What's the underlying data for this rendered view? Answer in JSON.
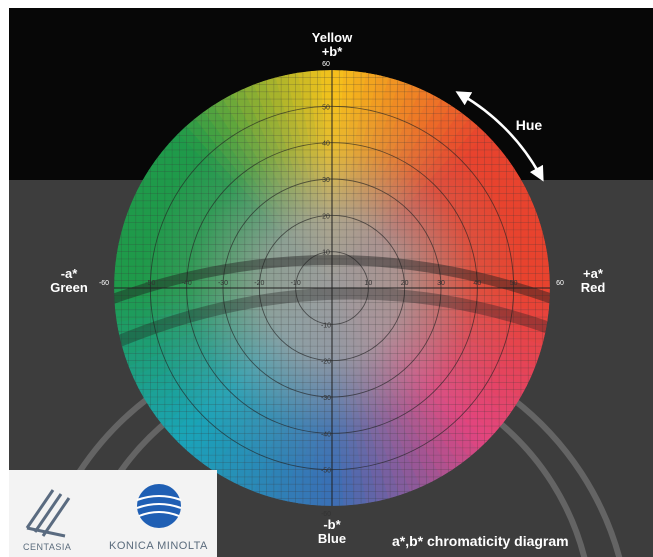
{
  "labels": {
    "top_name": "Yellow",
    "top_axis": "+b*",
    "bottom_axis": "-b*",
    "bottom_name": "Blue",
    "left_axis": "-a*",
    "left_name": "Green",
    "right_axis": "+a*",
    "right_name": "Red",
    "hue": "Hue",
    "caption": "a*,b* chromaticity diagram"
  },
  "scale": {
    "a_ticks": [
      -60,
      -50,
      -40,
      -30,
      -20,
      -10,
      10,
      20,
      30,
      40,
      50,
      60
    ],
    "b_ticks": [
      60,
      50,
      40,
      30,
      20,
      10,
      -10,
      -20,
      -30,
      -40,
      -50,
      -60
    ],
    "rings": [
      10,
      20,
      30,
      40,
      50
    ],
    "max": 60
  },
  "colors": {
    "yellow": "#f5c21b",
    "red": "#e8432e",
    "magenta": "#e2457f",
    "blue": "#3a6fb5",
    "cyan": "#1aa4b8",
    "green": "#1f9a4a",
    "center": "#9a9a9a"
  },
  "logos": {
    "centasia": "CENTASIA",
    "konica": "KONICA MINOLTA"
  }
}
